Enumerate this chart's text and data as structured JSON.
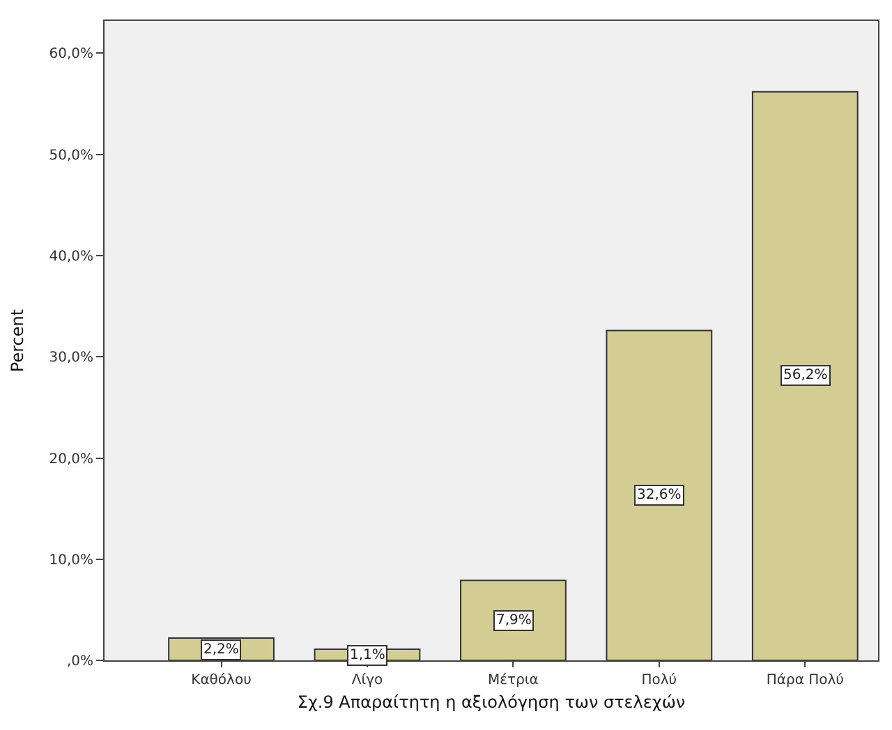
{
  "chart_data": {
    "type": "bar",
    "xlabel": "Σχ.9 Απαραίτητη η αξιολόγηση των στελεχών",
    "ylabel": "Percent",
    "categories": [
      "Καθόλου",
      "Λίγο",
      "Μέτρια",
      "Πολύ",
      "Πάρα Πολύ"
    ],
    "values": [
      2.2,
      1.1,
      7.9,
      32.6,
      56.2
    ],
    "value_labels": [
      "2,2%",
      "1,1%",
      "7,9%",
      "32,6%",
      "56,2%"
    ],
    "color": "#d3cd94",
    "ylim": [
      0,
      63.2
    ],
    "yticks": [
      {
        "value": 0,
        "label": ",0%"
      },
      {
        "value": 10,
        "label": "10,0%"
      },
      {
        "value": 20,
        "label": "20,0%"
      },
      {
        "value": 30,
        "label": "30,0%"
      },
      {
        "value": 40,
        "label": "40,0%"
      },
      {
        "value": 50,
        "label": "50,0%"
      },
      {
        "value": 60,
        "label": "60,0%"
      }
    ],
    "grid": false
  }
}
